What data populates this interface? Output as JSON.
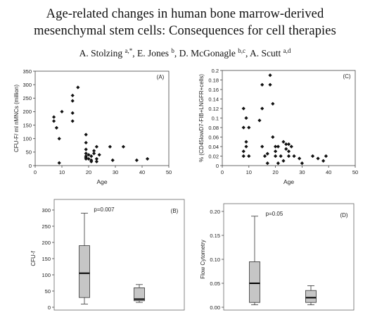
{
  "paper": {
    "title_line1": "Age-related changes in human bone marrow-derived",
    "title_line2": "mesenchymal stem cells: Consequences for cell therapies",
    "authors": [
      {
        "name": "A. Stolzing",
        "aff": "a,*",
        "sep": ", "
      },
      {
        "name": "E. Jones",
        "aff": "b",
        "sep": ", "
      },
      {
        "name": "D. McGonagle",
        "aff": "b,c",
        "sep": ", "
      },
      {
        "name": "A. Scutt",
        "aff": "a,d",
        "sep": ""
      }
    ]
  },
  "chart_data": [
    {
      "type": "scatter",
      "panel_label": "(A)",
      "xlabel": "Age",
      "ylabel": "CFU-F/ ml nMNCs (million)",
      "xlim": [
        0,
        50
      ],
      "ylim": [
        0,
        350
      ],
      "xticks": [
        0,
        10,
        20,
        30,
        40,
        50
      ],
      "yticks": [
        0,
        50,
        100,
        150,
        200,
        250,
        300,
        350
      ],
      "x": [
        7,
        7,
        8,
        9,
        9,
        10,
        14,
        14,
        14,
        14,
        16,
        19,
        19,
        19,
        19,
        19,
        19,
        19,
        20,
        20,
        21,
        21,
        21,
        22,
        22,
        23,
        23,
        23,
        24,
        28,
        29,
        33,
        38,
        42
      ],
      "y": [
        165,
        180,
        140,
        100,
        10,
        200,
        240,
        260,
        195,
        165,
        290,
        115,
        85,
        60,
        45,
        35,
        30,
        25,
        40,
        25,
        35,
        20,
        15,
        55,
        45,
        70,
        25,
        15,
        40,
        70,
        20,
        70,
        20,
        25
      ]
    },
    {
      "type": "scatter",
      "panel_label": "(C)",
      "xlabel": "Age",
      "ylabel": "% (CD45lowD7-FIB+LNGFR+cells)",
      "xlim": [
        0,
        50
      ],
      "ylim": [
        0,
        0.2
      ],
      "xticks": [
        0,
        10,
        20,
        30,
        40,
        50
      ],
      "yticks": [
        0,
        0.02,
        0.04,
        0.06,
        0.08,
        0.1,
        0.12,
        0.14,
        0.16,
        0.18,
        0.2
      ],
      "ytick_labels": [
        "0",
        "0.02",
        "0.04",
        "0.06",
        "0.08",
        "0.1",
        "0.12",
        "0.14",
        "0.16",
        "0.18",
        "0.2"
      ],
      "x": [
        8,
        8,
        8,
        8,
        9,
        9,
        9,
        10,
        10,
        14,
        15,
        15,
        15,
        16,
        17,
        17,
        18,
        18,
        19,
        19,
        20,
        20,
        20,
        21,
        21,
        22,
        23,
        23,
        24,
        24,
        25,
        25,
        25,
        26,
        27,
        29,
        30,
        34,
        36,
        38,
        39
      ],
      "y": [
        0.12,
        0.08,
        0.03,
        0.02,
        0.1,
        0.05,
        0.04,
        0.08,
        0.02,
        0.095,
        0.17,
        0.12,
        0.04,
        0.02,
        0.025,
        0.005,
        0.19,
        0.17,
        0.13,
        0.06,
        0.04,
        0.03,
        0.02,
        0.005,
        0.04,
        0.02,
        0.05,
        0.01,
        0.045,
        0.035,
        0.045,
        0.03,
        0.02,
        0.04,
        0.02,
        0.015,
        0.005,
        0.02,
        0.015,
        0.01,
        0.02
      ]
    },
    {
      "type": "box",
      "panel_label": "(B)",
      "ylabel": "CFU-f",
      "annotation": "p=0.007",
      "ylim": [
        0,
        300
      ],
      "yticks": [
        0,
        50,
        100,
        150,
        200,
        250,
        300
      ],
      "boxes": [
        {
          "min": 10,
          "q1": 30,
          "median": 105,
          "q3": 190,
          "max": 290
        },
        {
          "min": 15,
          "q1": 20,
          "median": 25,
          "q3": 60,
          "max": 70
        }
      ]
    },
    {
      "type": "box",
      "panel_label": "(D)",
      "ylabel": "Flow Cytometry",
      "annotation": "p=0.05",
      "ylim": [
        0,
        0.2
      ],
      "yticks": [
        0,
        0.05,
        0.1,
        0.15,
        0.2
      ],
      "ytick_labels": [
        "0.00",
        "0.05",
        "0.10",
        "0.15",
        "0.20"
      ],
      "boxes": [
        {
          "min": 0.005,
          "q1": 0.01,
          "median": 0.05,
          "q3": 0.095,
          "max": 0.19
        },
        {
          "min": 0.005,
          "q1": 0.01,
          "median": 0.02,
          "q3": 0.035,
          "max": 0.045
        }
      ]
    }
  ]
}
